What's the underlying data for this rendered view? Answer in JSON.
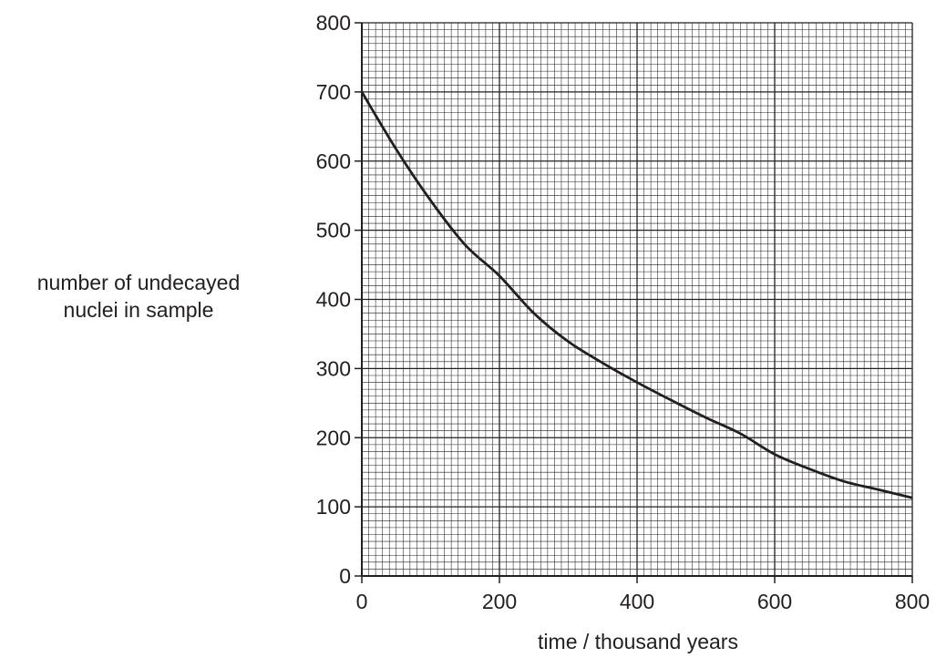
{
  "chart_data": {
    "type": "line",
    "xlabel": "time / thousand years",
    "ylabel_lines": [
      "number of undecayed",
      "nuclei in sample"
    ],
    "xlim": [
      0,
      800
    ],
    "ylim": [
      0,
      800
    ],
    "x_ticks": [
      0,
      200,
      400,
      600,
      800
    ],
    "y_ticks": [
      0,
      100,
      200,
      300,
      400,
      500,
      600,
      700,
      800
    ],
    "grid": true,
    "series": [
      {
        "x": [
          0,
          50,
          100,
          150,
          200,
          250,
          300,
          350,
          400,
          450,
          500,
          550,
          600,
          650,
          700,
          750,
          800
        ],
        "y": [
          700,
          617,
          543,
          479,
          434,
          380,
          339,
          308,
          280,
          254,
          229,
          206,
          176,
          155,
          137,
          125,
          113
        ]
      }
    ]
  }
}
